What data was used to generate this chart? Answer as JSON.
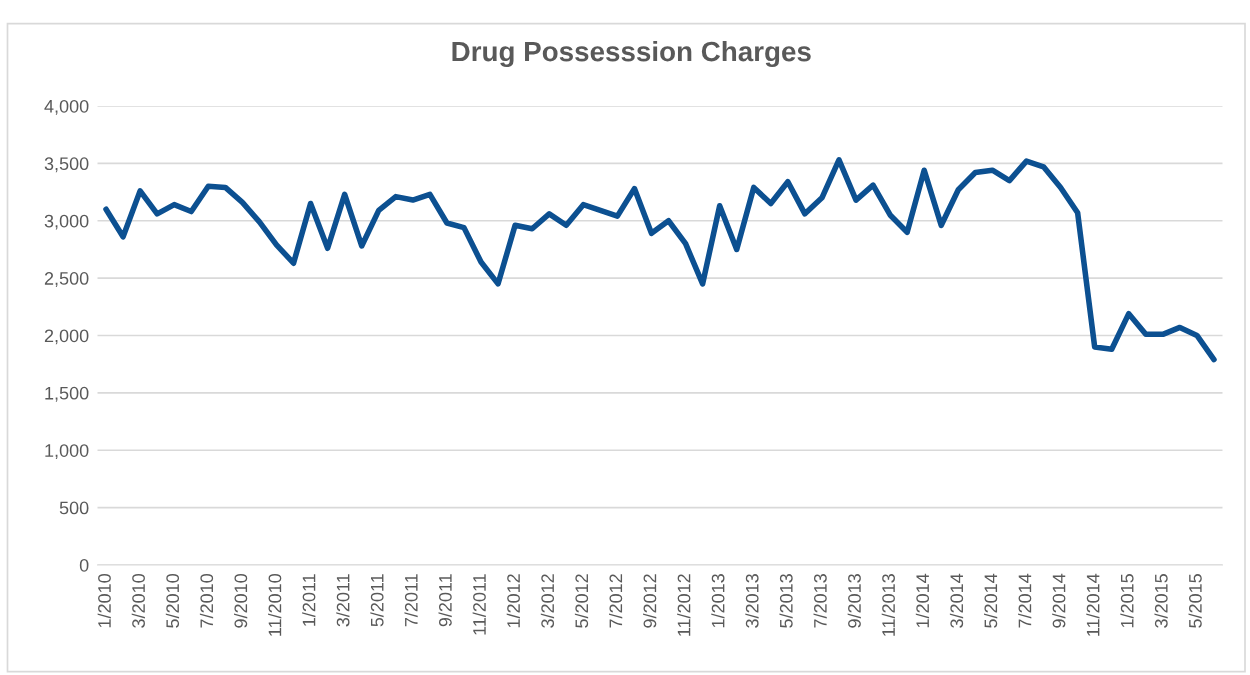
{
  "chart_data": {
    "type": "line",
    "title": "Drug Possesssion Charges",
    "categories": [
      "1/2010",
      null,
      "3/2010",
      null,
      "5/2010",
      null,
      "7/2010",
      null,
      "9/2010",
      null,
      "11/2010",
      null,
      "1/2011",
      null,
      "3/2011",
      null,
      "5/2011",
      null,
      "7/2011",
      null,
      "9/2011",
      null,
      "11/2011",
      null,
      "1/2012",
      null,
      "3/2012",
      null,
      "5/2012",
      null,
      "7/2012",
      null,
      "9/2012",
      null,
      "11/2012",
      null,
      "1/2013",
      null,
      "3/2013",
      null,
      "5/2013",
      null,
      "7/2013",
      null,
      "9/2013",
      null,
      "11/2013",
      null,
      "1/2014",
      null,
      "3/2014",
      null,
      "5/2014",
      null,
      "7/2014",
      null,
      "9/2014",
      null,
      "11/2014",
      null,
      "1/2015",
      null,
      "3/2015",
      null,
      "5/2015",
      null
    ],
    "series": [
      {
        "color": "#0c5091",
        "values": [
          3100,
          2860,
          3260,
          3060,
          3140,
          3080,
          3300,
          3290,
          3160,
          2990,
          2790,
          2630,
          3150,
          2760,
          3230,
          2780,
          3090,
          3210,
          3180,
          3230,
          2980,
          2940,
          2640,
          2450,
          2960,
          2930,
          3060,
          2960,
          3140,
          3090,
          3040,
          3280,
          2890,
          3000,
          2800,
          2450,
          3130,
          2750,
          3290,
          3150,
          3340,
          3060,
          3200,
          3530,
          3180,
          3310,
          3050,
          2900,
          3440,
          2960,
          3270,
          3420,
          3440,
          3350,
          3520,
          3470,
          3290,
          3070,
          1900,
          1880,
          2190,
          2010,
          2010,
          2070,
          2000,
          1790
        ]
      }
    ],
    "ylim": [
      0,
      4000
    ],
    "yticks": [
      {
        "value": 0,
        "label": "0"
      },
      {
        "value": 500,
        "label": "500"
      },
      {
        "value": 1000,
        "label": "1,000"
      },
      {
        "value": 1500,
        "label": "1,500"
      },
      {
        "value": 2000,
        "label": "2,000"
      },
      {
        "value": 2500,
        "label": "2,500"
      },
      {
        "value": 3000,
        "label": "3,000"
      },
      {
        "value": 3500,
        "label": "3,500"
      },
      {
        "value": 4000,
        "label": "4,000"
      }
    ],
    "grid": "y",
    "legend": false,
    "marker": "none",
    "line_style": "solid"
  }
}
